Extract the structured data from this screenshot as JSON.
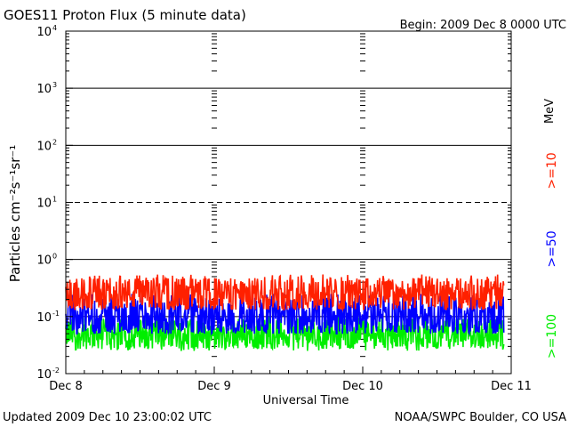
{
  "header": {
    "title": "GOES11 Proton Flux (5 minute data)",
    "begin": "Begin: 2009 Dec 8 0000 UTC"
  },
  "footer": {
    "updated": "Updated 2009 Dec 10 23:00:02 UTC",
    "source": "NOAA/SWPC Boulder, CO USA"
  },
  "chart_data": {
    "type": "line",
    "title": "GOES11 Proton Flux (5 minute data)",
    "xlabel": "Universal Time",
    "ylabel": "Particles cm⁻²s⁻¹sr⁻¹",
    "yscale": "log",
    "ylim": [
      0.01,
      10000
    ],
    "xlim": [
      0,
      3
    ],
    "x_tick_labels": [
      "Dec 8",
      "Dec 9",
      "Dec 10",
      "Dec 11"
    ],
    "y_tick_labels": [
      {
        "base": "10",
        "exp": "-2"
      },
      {
        "base": "10",
        "exp": "-1"
      },
      {
        "base": "10",
        "exp": "0"
      },
      {
        "base": "10",
        "exp": "1"
      },
      {
        "base": "10",
        "exp": "2"
      },
      {
        "base": "10",
        "exp": "3"
      },
      {
        "base": "10",
        "exp": "4"
      }
    ],
    "unit_label": "MeV",
    "grid": true,
    "series": [
      {
        "name": ">=10",
        "color": "#ff2000",
        "typical": 0.25,
        "range": [
          0.13,
          0.55
        ],
        "x_end": 2.95
      },
      {
        "name": ">=50",
        "color": "#0000ff",
        "typical": 0.1,
        "range": [
          0.05,
          0.25
        ],
        "x_end": 2.95
      },
      {
        "name": ">=100",
        "color": "#00ee00",
        "typical": 0.05,
        "range": [
          0.025,
          0.1
        ],
        "x_end": 2.95
      }
    ]
  }
}
